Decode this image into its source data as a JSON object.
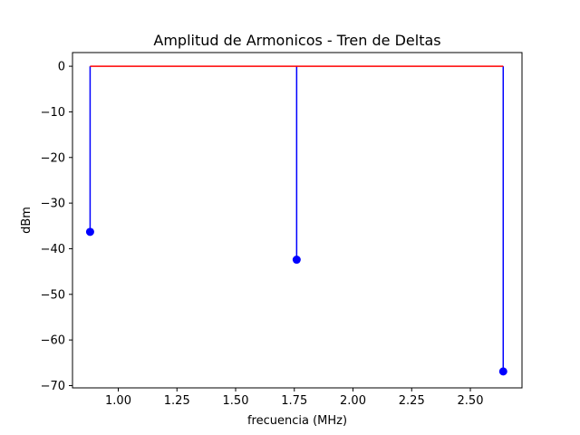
{
  "chart_data": {
    "type": "stem",
    "title": "Amplitud de Armonicos - Tren de Deltas",
    "xlabel": "frecuencia (MHz)",
    "ylabel": "dBm",
    "xlim": [
      0.805,
      2.72
    ],
    "ylim": [
      -70.5,
      3.0
    ],
    "xticks": [
      1.0,
      1.25,
      1.5,
      1.75,
      2.0,
      2.25,
      2.5
    ],
    "xtick_labels": [
      "1.00",
      "1.25",
      "1.50",
      "1.75",
      "2.00",
      "2.25",
      "2.50"
    ],
    "yticks": [
      0,
      -10,
      -20,
      -30,
      -40,
      -50,
      -60,
      -70
    ],
    "ytick_labels": [
      "0",
      "−10",
      "−20",
      "−30",
      "−40",
      "−50",
      "−60",
      "−70"
    ],
    "baseline": 0,
    "grid": false,
    "colors": {
      "stem": "#0000ff",
      "marker": "#0000ff",
      "baseline": "#ff0000"
    },
    "series": [
      {
        "x": [
          0.88,
          1.76,
          2.64
        ],
        "values": [
          -36.3,
          -42.4,
          -66.9
        ]
      }
    ]
  }
}
